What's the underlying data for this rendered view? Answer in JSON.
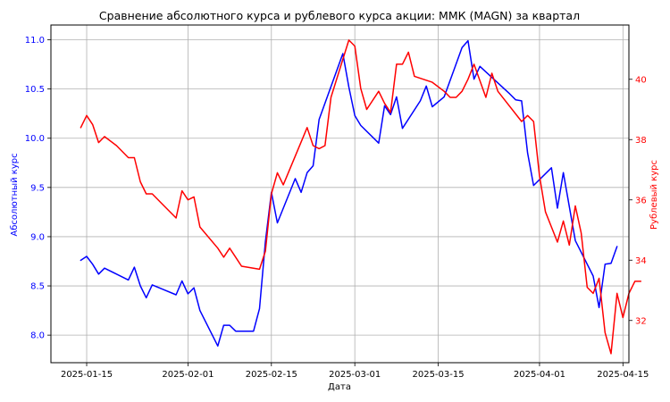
{
  "chart_data": {
    "type": "line",
    "title": "Сравнение абсолютного курса и рублевого курса акции: ММК (MAGN) за квартал",
    "xlabel": "Дата",
    "ylabel_left": "Абсолютный курс",
    "ylabel_right": "Рублевый курс",
    "x_ticks": [
      "2025-01-15",
      "2025-02-01",
      "2025-02-15",
      "2025-03-01",
      "2025-03-15",
      "2025-04-01",
      "2025-04-15"
    ],
    "y_left_ticks": [
      "8.0",
      "8.5",
      "9.0",
      "9.5",
      "10.0",
      "10.5",
      "11.0"
    ],
    "y_right_ticks": [
      "32",
      "34",
      "36",
      "38",
      "40"
    ],
    "ylim_left": [
      7.72,
      11.15
    ],
    "ylim_right": [
      30.6,
      41.8
    ],
    "xlim": [
      "2025-01-09",
      "2025-04-16"
    ],
    "grid": true,
    "colors": {
      "left": "#0000ff",
      "right": "#ff0000"
    },
    "series": [
      {
        "axis": "left",
        "color": "#0000ff",
        "points": [
          [
            "2025-01-14",
            8.76
          ],
          [
            "2025-01-15",
            8.8
          ],
          [
            "2025-01-16",
            8.72
          ],
          [
            "2025-01-17",
            8.62
          ],
          [
            "2025-01-18",
            8.68
          ],
          [
            "2025-01-20",
            8.62
          ],
          [
            "2025-01-22",
            8.56
          ],
          [
            "2025-01-23",
            8.69
          ],
          [
            "2025-01-24",
            8.5
          ],
          [
            "2025-01-25",
            8.38
          ],
          [
            "2025-01-26",
            8.51
          ],
          [
            "2025-01-28",
            8.46
          ],
          [
            "2025-01-30",
            8.41
          ],
          [
            "2025-01-31",
            8.55
          ],
          [
            "2025-02-01",
            8.42
          ],
          [
            "2025-02-02",
            8.48
          ],
          [
            "2025-02-03",
            8.25
          ],
          [
            "2025-02-06",
            7.89
          ],
          [
            "2025-02-07",
            8.1
          ],
          [
            "2025-02-08",
            8.1
          ],
          [
            "2025-02-09",
            8.04
          ],
          [
            "2025-02-12",
            8.04
          ],
          [
            "2025-02-13",
            8.27
          ],
          [
            "2025-02-14",
            8.95
          ],
          [
            "2025-02-15",
            9.45
          ],
          [
            "2025-02-16",
            9.14
          ],
          [
            "2025-02-19",
            9.59
          ],
          [
            "2025-02-20",
            9.45
          ],
          [
            "2025-02-21",
            9.65
          ],
          [
            "2025-02-22",
            9.72
          ],
          [
            "2025-02-23",
            10.19
          ],
          [
            "2025-02-27",
            10.86
          ],
          [
            "2025-02-28",
            10.52
          ],
          [
            "2025-03-01",
            10.23
          ],
          [
            "2025-03-02",
            10.13
          ],
          [
            "2025-03-05",
            9.95
          ],
          [
            "2025-03-06",
            10.33
          ],
          [
            "2025-03-07",
            10.24
          ],
          [
            "2025-03-08",
            10.42
          ],
          [
            "2025-03-09",
            10.1
          ],
          [
            "2025-03-12",
            10.38
          ],
          [
            "2025-03-13",
            10.53
          ],
          [
            "2025-03-14",
            10.32
          ],
          [
            "2025-03-16",
            10.42
          ],
          [
            "2025-03-19",
            10.92
          ],
          [
            "2025-03-20",
            10.99
          ],
          [
            "2025-03-21",
            10.6
          ],
          [
            "2025-03-22",
            10.73
          ],
          [
            "2025-03-27",
            10.45
          ],
          [
            "2025-03-28",
            10.39
          ],
          [
            "2025-03-29",
            10.38
          ],
          [
            "2025-03-30",
            9.85
          ],
          [
            "2025-03-31",
            9.52
          ],
          [
            "2025-04-03",
            9.7
          ],
          [
            "2025-04-04",
            9.29
          ],
          [
            "2025-04-05",
            9.65
          ],
          [
            "2025-04-07",
            8.96
          ],
          [
            "2025-04-10",
            8.6
          ],
          [
            "2025-04-11",
            8.28
          ],
          [
            "2025-04-12",
            8.72
          ],
          [
            "2025-04-13",
            8.73
          ],
          [
            "2025-04-14",
            8.9
          ]
        ]
      },
      {
        "axis": "right",
        "color": "#ff0000",
        "points": [
          [
            "2025-01-14",
            38.4
          ],
          [
            "2025-01-15",
            38.8
          ],
          [
            "2025-01-16",
            38.5
          ],
          [
            "2025-01-17",
            37.9
          ],
          [
            "2025-01-18",
            38.1
          ],
          [
            "2025-01-20",
            37.8
          ],
          [
            "2025-01-22",
            37.4
          ],
          [
            "2025-01-23",
            37.4
          ],
          [
            "2025-01-24",
            36.6
          ],
          [
            "2025-01-25",
            36.2
          ],
          [
            "2025-01-26",
            36.2
          ],
          [
            "2025-01-28",
            35.8
          ],
          [
            "2025-01-30",
            35.4
          ],
          [
            "2025-01-31",
            36.3
          ],
          [
            "2025-02-01",
            36.0
          ],
          [
            "2025-02-02",
            36.1
          ],
          [
            "2025-02-03",
            35.1
          ],
          [
            "2025-02-06",
            34.4
          ],
          [
            "2025-02-07",
            34.1
          ],
          [
            "2025-02-08",
            34.4
          ],
          [
            "2025-02-09",
            34.1
          ],
          [
            "2025-02-10",
            33.8
          ],
          [
            "2025-02-13",
            33.7
          ],
          [
            "2025-02-14",
            34.3
          ],
          [
            "2025-02-15",
            36.2
          ],
          [
            "2025-02-16",
            36.9
          ],
          [
            "2025-02-17",
            36.5
          ],
          [
            "2025-02-21",
            38.4
          ],
          [
            "2025-02-22",
            37.8
          ],
          [
            "2025-02-23",
            37.7
          ],
          [
            "2025-02-24",
            37.8
          ],
          [
            "2025-02-25",
            39.4
          ],
          [
            "2025-02-28",
            41.3
          ],
          [
            "2025-03-01",
            41.1
          ],
          [
            "2025-03-02",
            39.7
          ],
          [
            "2025-03-03",
            39.0
          ],
          [
            "2025-03-05",
            39.6
          ],
          [
            "2025-03-06",
            39.2
          ],
          [
            "2025-03-07",
            38.9
          ],
          [
            "2025-03-08",
            40.5
          ],
          [
            "2025-03-09",
            40.5
          ],
          [
            "2025-03-10",
            40.9
          ],
          [
            "2025-03-11",
            40.1
          ],
          [
            "2025-03-14",
            39.9
          ],
          [
            "2025-03-16",
            39.6
          ],
          [
            "2025-03-17",
            39.4
          ],
          [
            "2025-03-18",
            39.4
          ],
          [
            "2025-03-19",
            39.6
          ],
          [
            "2025-03-20",
            40.0
          ],
          [
            "2025-03-21",
            40.5
          ],
          [
            "2025-03-23",
            39.4
          ],
          [
            "2025-03-24",
            40.2
          ],
          [
            "2025-03-25",
            39.6
          ],
          [
            "2025-03-29",
            38.6
          ],
          [
            "2025-03-30",
            38.8
          ],
          [
            "2025-03-31",
            38.6
          ],
          [
            "2025-04-01",
            36.8
          ],
          [
            "2025-04-02",
            35.6
          ],
          [
            "2025-04-03",
            35.1
          ],
          [
            "2025-04-04",
            34.6
          ],
          [
            "2025-04-05",
            35.3
          ],
          [
            "2025-04-06",
            34.5
          ],
          [
            "2025-04-07",
            35.8
          ],
          [
            "2025-04-08",
            34.9
          ],
          [
            "2025-04-09",
            33.1
          ],
          [
            "2025-04-10",
            32.9
          ],
          [
            "2025-04-11",
            33.4
          ],
          [
            "2025-04-12",
            31.6
          ],
          [
            "2025-04-13",
            30.9
          ],
          [
            "2025-04-14",
            32.9
          ],
          [
            "2025-04-15",
            32.1
          ],
          [
            "2025-04-16",
            32.9
          ],
          [
            "2025-04-17",
            33.3
          ],
          [
            "2025-04-18",
            33.3
          ]
        ]
      }
    ]
  }
}
